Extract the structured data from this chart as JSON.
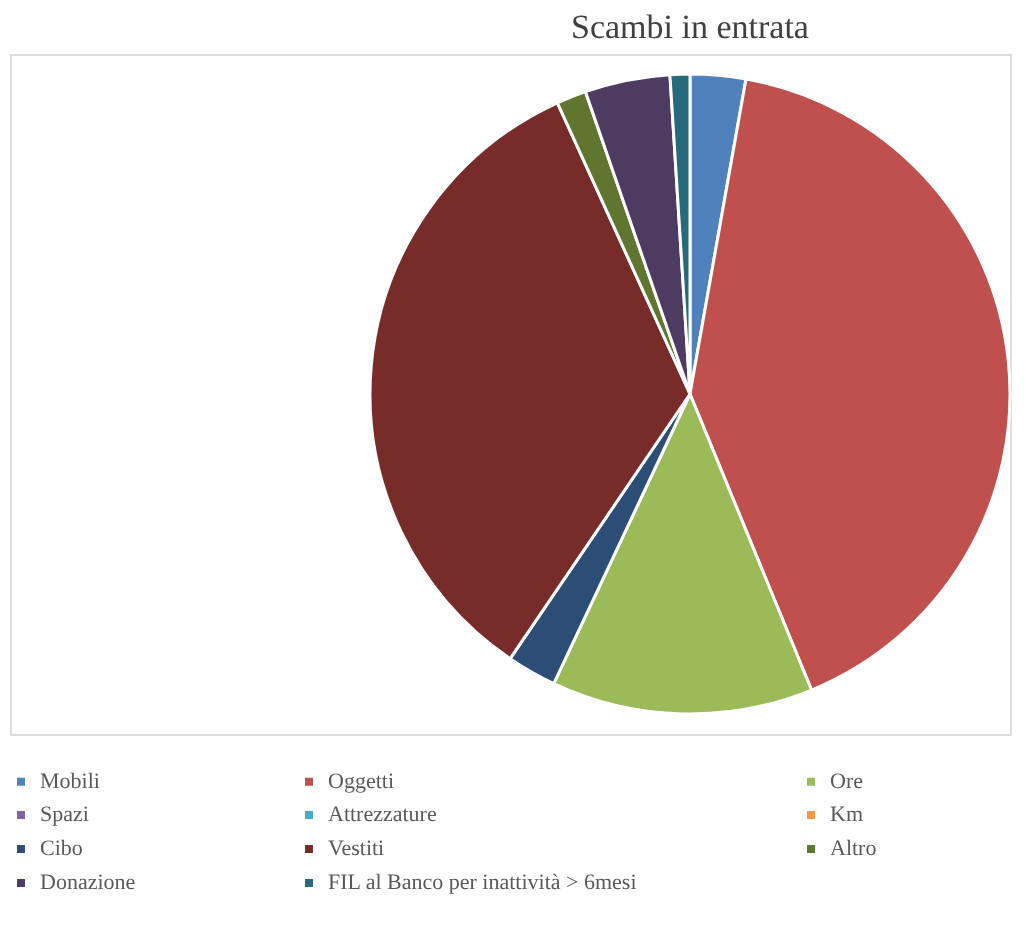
{
  "chart_data": {
    "type": "pie",
    "title": "Scambi in entrata",
    "categories": [
      "Mobili",
      "Oggetti",
      "Ore",
      "Spazi",
      "Attrezzature",
      "Km",
      "Cibo",
      "Vestiti",
      "Altro",
      "Donazione",
      "FIL al Banco per inattività > 6mesi"
    ],
    "values": [
      2.8,
      41,
      13.2,
      0,
      0,
      0,
      2.5,
      33.7,
      1.5,
      4.3,
      1
    ],
    "colors": [
      "#4f81bd",
      "#c0504d",
      "#9bbb59",
      "#8064a2",
      "#4bacc6",
      "#f79646",
      "#2c4d75",
      "#772c2a",
      "#5f7530",
      "#4d3b62",
      "#276a7c"
    ],
    "legend": "bottom"
  }
}
